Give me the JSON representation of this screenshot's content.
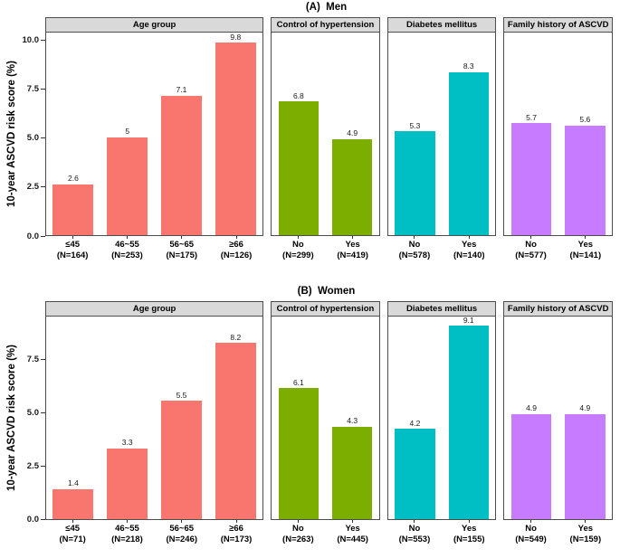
{
  "colors": {
    "age_group": "#F8766D",
    "hypertension": "#7CAE00",
    "diabetes": "#00BFC4",
    "family_history": "#C77CFF",
    "strip_background": "#D9D9D9",
    "panel_border": "#4D4D4D",
    "background": "#FFFFFF"
  },
  "chart_data": [
    {
      "type": "bar",
      "title": "(A)  Men",
      "ylabel": "10-year ASCVD risk score (%)",
      "yticks": [
        "0.0",
        "2.5",
        "5.0",
        "7.5",
        "10.0"
      ],
      "ylim": [
        0,
        10.37
      ],
      "grid": false,
      "panels": [
        {
          "label": "Age group",
          "color": "#F8766D",
          "bars": [
            {
              "category": "≤45",
              "n": "(N=164)",
              "value": 2.6
            },
            {
              "category": "46~55",
              "n": "(N=253)",
              "value": 5
            },
            {
              "category": "56~65",
              "n": "(N=175)",
              "value": 7.1
            },
            {
              "category": "≥66",
              "n": "(N=126)",
              "value": 9.8
            }
          ]
        },
        {
          "label": "Control of hypertension",
          "color": "#7CAE00",
          "bars": [
            {
              "category": "No",
              "n": "(N=299)",
              "value": 6.8
            },
            {
              "category": "Yes",
              "n": "(N=419)",
              "value": 4.9
            }
          ]
        },
        {
          "label": "Diabetes mellitus",
          "color": "#00BFC4",
          "bars": [
            {
              "category": "No",
              "n": "(N=578)",
              "value": 5.3
            },
            {
              "category": "Yes",
              "n": "(N=140)",
              "value": 8.3
            }
          ]
        },
        {
          "label": "Family history of ASCVD",
          "color": "#C77CFF",
          "bars": [
            {
              "category": "No",
              "n": "(N=577)",
              "value": 5.7
            },
            {
              "category": "Yes",
              "n": "(N=141)",
              "value": 5.6
            }
          ]
        }
      ]
    },
    {
      "type": "bar",
      "title": "(B)  Women",
      "ylabel": "10-year ASCVD risk score (%)",
      "yticks": [
        "0.0",
        "2.5",
        "5.0",
        "7.5"
      ],
      "ylim": [
        0,
        9.5
      ],
      "grid": false,
      "panels": [
        {
          "label": "Age group",
          "color": "#F8766D",
          "bars": [
            {
              "category": "≤45",
              "n": "(N=71)",
              "value": 1.4
            },
            {
              "category": "46~55",
              "n": "(N=218)",
              "value": 3.3
            },
            {
              "category": "56~65",
              "n": "(N=246)",
              "value": 5.5
            },
            {
              "category": "≥66",
              "n": "(N=173)",
              "value": 8.2
            }
          ]
        },
        {
          "label": "Control of hypertension",
          "color": "#7CAE00",
          "bars": [
            {
              "category": "No",
              "n": "(N=263)",
              "value": 6.1
            },
            {
              "category": "Yes",
              "n": "(N=445)",
              "value": 4.3
            }
          ]
        },
        {
          "label": "Diabetes mellitus",
          "color": "#00BFC4",
          "bars": [
            {
              "category": "No",
              "n": "(N=553)",
              "value": 4.2
            },
            {
              "category": "Yes",
              "n": "(N=155)",
              "value": 9.1
            }
          ]
        },
        {
          "label": "Family history of ASCVD",
          "color": "#C77CFF",
          "bars": [
            {
              "category": "No",
              "n": "(N=549)",
              "value": 4.9
            },
            {
              "category": "Yes",
              "n": "(N=159)",
              "value": 4.9
            }
          ]
        }
      ]
    }
  ]
}
